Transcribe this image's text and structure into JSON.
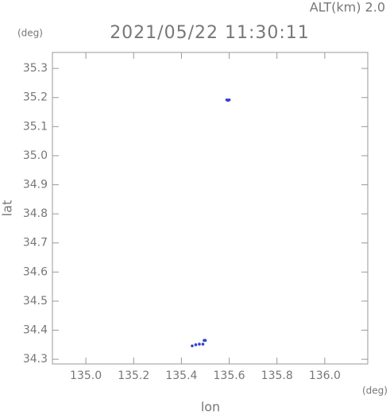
{
  "chart_data": {
    "type": "scatter",
    "title": "2021/05/22 11:30:11",
    "annotation": "ALT(km) 2.0",
    "x_label": "lon",
    "y_label": "lat",
    "x_unit": "(deg)",
    "y_unit": "(deg)",
    "x": [
      135.59,
      135.595,
      135.6,
      135.445,
      135.46,
      135.475,
      135.49,
      135.495,
      135.5
    ],
    "y": [
      35.192,
      35.19,
      35.192,
      34.346,
      34.35,
      34.352,
      34.352,
      34.365,
      34.365
    ],
    "color": "#3344cc",
    "xlim": [
      134.86,
      136.18
    ],
    "ylim": [
      34.284,
      35.355
    ],
    "xticks": [
      {
        "value": 135.0,
        "label": "135.0"
      },
      135.2,
      135.4,
      135.6,
      135.8,
      {
        "value": 136.0,
        "label": "136.0"
      }
    ],
    "yticks": [
      35.3,
      35.2,
      35.1,
      {
        "value": 35.0,
        "label": "35.0"
      },
      34.9,
      34.8,
      34.7,
      34.6,
      34.5,
      34.4,
      34.3
    ]
  }
}
